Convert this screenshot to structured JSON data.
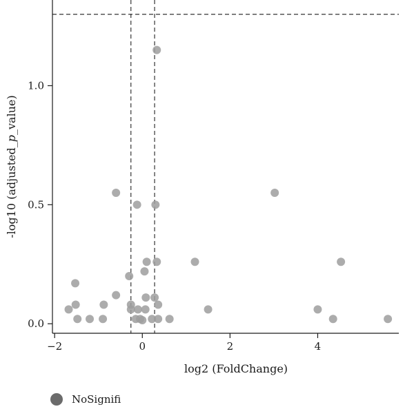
{
  "chart_data": {
    "type": "scatter",
    "title": "",
    "xlabel": "log2 (FoldChange)",
    "ylabel_prefix": "-log10 (adjusted_",
    "ylabel_italic": "p",
    "ylabel_suffix": "_value)",
    "xlim": [
      -2.05,
      5.85
    ],
    "ylim": [
      -0.04,
      1.36
    ],
    "x_ticks": [
      -2,
      0,
      2,
      4
    ],
    "x_tick_labels": [
      "−2",
      "0",
      "2",
      "4"
    ],
    "y_ticks": [
      0.0,
      0.5,
      1.0
    ],
    "y_tick_labels": [
      "0.0",
      "0.5",
      "1.0"
    ],
    "grid": false,
    "thresholds": {
      "x": [
        -0.26,
        0.28
      ],
      "y": 1.3
    },
    "legend": {
      "position": "bottom-left",
      "entries": [
        "NoSignifi"
      ]
    },
    "colors": {
      "point": "#9e9e9e",
      "point_overlap": "#2e2e2e",
      "threshold_line": "#333333"
    },
    "series": [
      {
        "name": "NoSignifi",
        "points": [
          {
            "x": 0.33,
            "y": 1.15
          },
          {
            "x": 3.02,
            "y": 0.55
          },
          {
            "x": -0.6,
            "y": 0.55
          },
          {
            "x": -0.12,
            "y": 0.5
          },
          {
            "x": 0.3,
            "y": 0.5
          },
          {
            "x": 0.1,
            "y": 0.26
          },
          {
            "x": 0.33,
            "y": 0.26
          },
          {
            "x": 1.2,
            "y": 0.26
          },
          {
            "x": 4.53,
            "y": 0.26
          },
          {
            "x": 0.05,
            "y": 0.22
          },
          {
            "x": -0.3,
            "y": 0.2
          },
          {
            "x": -1.53,
            "y": 0.17
          },
          {
            "x": -0.6,
            "y": 0.12
          },
          {
            "x": 0.08,
            "y": 0.11
          },
          {
            "x": 0.28,
            "y": 0.11
          },
          {
            "x": -1.52,
            "y": 0.08
          },
          {
            "x": -0.88,
            "y": 0.08
          },
          {
            "x": -0.26,
            "y": 0.08
          },
          {
            "x": 0.36,
            "y": 0.08
          },
          {
            "x": -1.68,
            "y": 0.06
          },
          {
            "x": -0.26,
            "y": 0.06
          },
          {
            "x": -0.1,
            "y": 0.06
          },
          {
            "x": 0.07,
            "y": 0.06
          },
          {
            "x": 1.5,
            "y": 0.06
          },
          {
            "x": 4.0,
            "y": 0.06
          },
          {
            "x": -1.48,
            "y": 0.02
          },
          {
            "x": -1.2,
            "y": 0.02
          },
          {
            "x": -0.9,
            "y": 0.02
          },
          {
            "x": -0.15,
            "y": 0.02
          },
          {
            "x": -0.05,
            "y": 0.02
          },
          {
            "x": 0.0,
            "y": 0.015
          },
          {
            "x": 0.22,
            "y": 0.02
          },
          {
            "x": 0.36,
            "y": 0.02
          },
          {
            "x": 0.62,
            "y": 0.02
          },
          {
            "x": 4.35,
            "y": 0.02
          },
          {
            "x": 5.6,
            "y": 0.02
          }
        ]
      }
    ]
  }
}
